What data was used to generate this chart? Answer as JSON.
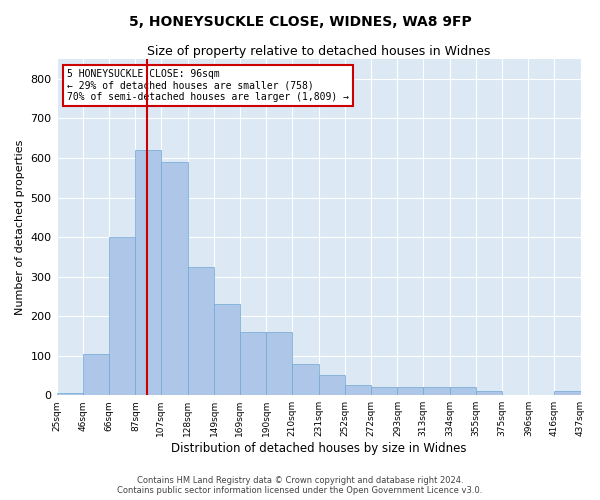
{
  "title": "5, HONEYSUCKLE CLOSE, WIDNES, WA8 9FP",
  "subtitle": "Size of property relative to detached houses in Widnes",
  "xlabel": "Distribution of detached houses by size in Widnes",
  "ylabel": "Number of detached properties",
  "bin_labels": [
    "25sqm",
    "46sqm",
    "66sqm",
    "87sqm",
    "107sqm",
    "128sqm",
    "149sqm",
    "169sqm",
    "190sqm",
    "210sqm",
    "231sqm",
    "252sqm",
    "272sqm",
    "293sqm",
    "313sqm",
    "334sqm",
    "355sqm",
    "375sqm",
    "396sqm",
    "416sqm",
    "437sqm"
  ],
  "bar_values": [
    5,
    105,
    400,
    620,
    590,
    325,
    230,
    160,
    160,
    80,
    50,
    25,
    20,
    20,
    20,
    20,
    10,
    0,
    0,
    10
  ],
  "bin_edges": [
    25,
    46,
    66,
    87,
    107,
    128,
    149,
    169,
    190,
    210,
    231,
    252,
    272,
    293,
    313,
    334,
    355,
    375,
    396,
    416,
    437
  ],
  "bar_color": "#aec6e8",
  "bar_edge_color": "#6fa8d4",
  "property_size": 96,
  "vline_color": "#cc0000",
  "annotation_text": "5 HONEYSUCKLE CLOSE: 96sqm\n← 29% of detached houses are smaller (758)\n70% of semi-detached houses are larger (1,809) →",
  "annotation_box_color": "#ffffff",
  "annotation_box_edge": "#cc0000",
  "ylim": [
    0,
    850
  ],
  "yticks": [
    0,
    100,
    200,
    300,
    400,
    500,
    600,
    700,
    800
  ],
  "background_color": "#dce9f5",
  "footer_line1": "Contains HM Land Registry data © Crown copyright and database right 2024.",
  "footer_line2": "Contains public sector information licensed under the Open Government Licence v3.0.",
  "title_fontsize": 10,
  "subtitle_fontsize": 9
}
